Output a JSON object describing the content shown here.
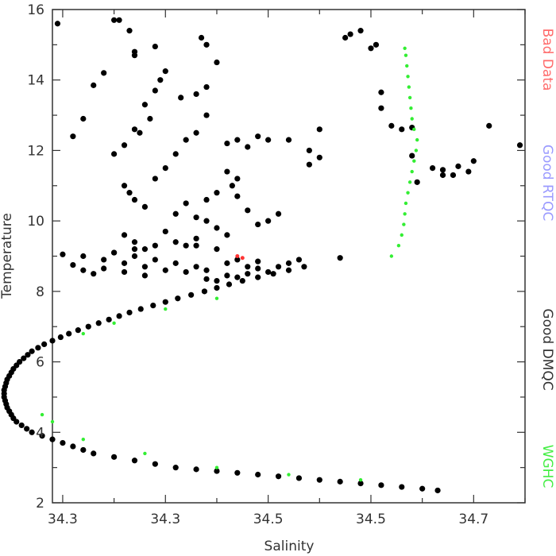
{
  "chart_data": {
    "type": "scatter",
    "xlabel": "Salinity",
    "ylabel": "Temperature",
    "xlim": [
      34.27,
      34.73
    ],
    "ylim": [
      2,
      16
    ],
    "x_tick_labels": [
      {
        "value": 34.28,
        "label": "34.3"
      },
      {
        "value": 34.38,
        "label": "34.3"
      },
      {
        "value": 34.48,
        "label": "34.5"
      },
      {
        "value": 34.58,
        "label": "34.5"
      },
      {
        "value": 34.68,
        "label": "34.7"
      }
    ],
    "y_ticks": [
      2,
      4,
      6,
      8,
      10,
      12,
      14,
      16
    ],
    "legend": [
      {
        "label": "Bad Data",
        "color": "#ff6b6b"
      },
      {
        "label": "Good RTQC",
        "color": "#9a9aff"
      },
      {
        "label": "Good DMQC",
        "color": "#333333"
      },
      {
        "label": "WGHC",
        "color": "#44ee44"
      }
    ],
    "series": [
      {
        "name": "Good DMQC",
        "color": "#000000",
        "points": [
          [
            34.645,
            2.35
          ],
          [
            34.63,
            2.4
          ],
          [
            34.61,
            2.45
          ],
          [
            34.59,
            2.5
          ],
          [
            34.57,
            2.55
          ],
          [
            34.55,
            2.6
          ],
          [
            34.53,
            2.65
          ],
          [
            34.51,
            2.7
          ],
          [
            34.49,
            2.75
          ],
          [
            34.47,
            2.8
          ],
          [
            34.45,
            2.85
          ],
          [
            34.43,
            2.9
          ],
          [
            34.41,
            2.95
          ],
          [
            34.39,
            3.0
          ],
          [
            34.37,
            3.1
          ],
          [
            34.35,
            3.2
          ],
          [
            34.33,
            3.3
          ],
          [
            34.31,
            3.4
          ],
          [
            34.3,
            3.5
          ],
          [
            34.29,
            3.6
          ],
          [
            34.28,
            3.7
          ],
          [
            34.27,
            3.8
          ],
          [
            34.26,
            3.9
          ],
          [
            34.25,
            4.0
          ],
          [
            34.245,
            4.1
          ],
          [
            34.24,
            4.2
          ],
          [
            34.235,
            4.3
          ],
          [
            34.232,
            4.4
          ],
          [
            34.23,
            4.5
          ],
          [
            34.228,
            4.6
          ],
          [
            34.226,
            4.7
          ],
          [
            34.225,
            4.8
          ],
          [
            34.224,
            4.9
          ],
          [
            34.223,
            5.0
          ],
          [
            34.223,
            5.1
          ],
          [
            34.223,
            5.2
          ],
          [
            34.224,
            5.3
          ],
          [
            34.225,
            5.4
          ],
          [
            34.226,
            5.5
          ],
          [
            34.228,
            5.6
          ],
          [
            34.23,
            5.7
          ],
          [
            34.232,
            5.8
          ],
          [
            34.235,
            5.9
          ],
          [
            34.238,
            6.0
          ],
          [
            34.242,
            6.1
          ],
          [
            34.246,
            6.2
          ],
          [
            34.25,
            6.3
          ],
          [
            34.256,
            6.4
          ],
          [
            34.262,
            6.5
          ],
          [
            34.27,
            6.6
          ],
          [
            34.278,
            6.7
          ],
          [
            34.286,
            6.8
          ],
          [
            34.295,
            6.9
          ],
          [
            34.305,
            7.0
          ],
          [
            34.315,
            7.1
          ],
          [
            34.325,
            7.2
          ],
          [
            34.335,
            7.3
          ],
          [
            34.345,
            7.4
          ],
          [
            34.356,
            7.5
          ],
          [
            34.368,
            7.6
          ],
          [
            34.38,
            7.7
          ],
          [
            34.392,
            7.8
          ],
          [
            34.405,
            7.9
          ],
          [
            34.418,
            8.0
          ],
          [
            34.43,
            8.1
          ],
          [
            34.442,
            8.2
          ],
          [
            34.455,
            8.3
          ],
          [
            34.47,
            8.4
          ],
          [
            34.485,
            8.5
          ],
          [
            34.5,
            8.6
          ],
          [
            34.515,
            8.7
          ],
          [
            34.43,
            8.3
          ],
          [
            34.46,
            8.5
          ],
          [
            34.48,
            8.55
          ],
          [
            34.49,
            8.7
          ],
          [
            34.5,
            8.8
          ],
          [
            34.51,
            8.9
          ],
          [
            34.47,
            8.65
          ],
          [
            34.45,
            8.4
          ],
          [
            34.44,
            8.45
          ],
          [
            34.42,
            8.35
          ],
          [
            34.4,
            8.55
          ],
          [
            34.38,
            8.6
          ],
          [
            34.36,
            8.7
          ],
          [
            34.34,
            8.8
          ],
          [
            34.32,
            8.9
          ],
          [
            34.3,
            9.0
          ],
          [
            34.28,
            9.05
          ],
          [
            34.33,
            9.1
          ],
          [
            34.35,
            9.2
          ],
          [
            34.37,
            9.3
          ],
          [
            34.39,
            9.4
          ],
          [
            34.41,
            9.3
          ],
          [
            34.43,
            9.2
          ],
          [
            34.45,
            8.9
          ],
          [
            34.44,
            8.8
          ],
          [
            34.46,
            8.7
          ],
          [
            34.47,
            8.85
          ],
          [
            34.55,
            8.95
          ],
          [
            34.42,
            8.6
          ],
          [
            34.41,
            8.7
          ],
          [
            34.39,
            8.8
          ],
          [
            34.37,
            8.9
          ],
          [
            34.35,
            9.0
          ],
          [
            34.31,
            8.5
          ],
          [
            34.3,
            8.6
          ],
          [
            34.29,
            8.75
          ],
          [
            34.32,
            8.65
          ],
          [
            34.34,
            8.55
          ],
          [
            34.36,
            8.45
          ]
        ]
      },
      {
        "name": "Good DMQC",
        "color": "#000000",
        "points": [
          [
            34.275,
            15.6
          ],
          [
            34.33,
            15.7
          ],
          [
            34.335,
            15.7
          ],
          [
            34.345,
            15.4
          ],
          [
            34.35,
            14.8
          ],
          [
            34.35,
            14.7
          ],
          [
            34.32,
            14.2
          ],
          [
            34.31,
            13.85
          ],
          [
            34.37,
            14.95
          ],
          [
            34.38,
            14.25
          ],
          [
            34.375,
            14.0
          ],
          [
            34.37,
            13.7
          ],
          [
            34.36,
            13.3
          ],
          [
            34.365,
            12.9
          ],
          [
            34.35,
            12.6
          ],
          [
            34.355,
            12.5
          ],
          [
            34.34,
            12.15
          ],
          [
            34.33,
            11.9
          ],
          [
            34.3,
            12.9
          ],
          [
            34.29,
            12.4
          ],
          [
            34.34,
            11.0
          ],
          [
            34.345,
            10.8
          ],
          [
            34.35,
            10.6
          ],
          [
            34.36,
            10.4
          ],
          [
            34.37,
            11.2
          ],
          [
            34.38,
            11.5
          ],
          [
            34.39,
            11.9
          ],
          [
            34.4,
            12.3
          ],
          [
            34.41,
            12.5
          ],
          [
            34.42,
            13.0
          ],
          [
            34.395,
            13.5
          ],
          [
            34.41,
            13.6
          ],
          [
            34.42,
            13.8
          ],
          [
            34.43,
            14.5
          ],
          [
            34.415,
            15.2
          ],
          [
            34.42,
            15.0
          ],
          [
            34.44,
            12.2
          ],
          [
            34.45,
            12.3
          ],
          [
            34.46,
            12.1
          ],
          [
            34.47,
            12.4
          ],
          [
            34.48,
            12.3
          ],
          [
            34.445,
            11.0
          ],
          [
            34.45,
            10.7
          ],
          [
            34.46,
            10.3
          ],
          [
            34.47,
            9.9
          ],
          [
            34.42,
            10.0
          ],
          [
            34.43,
            9.8
          ],
          [
            34.44,
            9.6
          ],
          [
            34.41,
            9.5
          ],
          [
            34.4,
            9.3
          ],
          [
            34.38,
            9.7
          ],
          [
            34.36,
            9.2
          ],
          [
            34.35,
            9.4
          ],
          [
            34.34,
            9.6
          ],
          [
            34.33,
            9.1
          ],
          [
            34.39,
            10.2
          ],
          [
            34.4,
            10.5
          ],
          [
            34.41,
            10.1
          ],
          [
            34.42,
            10.6
          ],
          [
            34.43,
            10.8
          ],
          [
            34.44,
            11.4
          ],
          [
            34.45,
            11.2
          ],
          [
            34.48,
            10.0
          ],
          [
            34.49,
            10.2
          ],
          [
            34.5,
            12.3
          ],
          [
            34.52,
            12.0
          ],
          [
            34.53,
            11.8
          ],
          [
            34.52,
            11.6
          ],
          [
            34.53,
            12.6
          ],
          [
            34.56,
            15.3
          ],
          [
            34.555,
            15.2
          ],
          [
            34.57,
            15.4
          ],
          [
            34.585,
            15.0
          ],
          [
            34.59,
            13.65
          ],
          [
            34.59,
            13.2
          ],
          [
            34.6,
            12.7
          ],
          [
            34.61,
            12.6
          ],
          [
            34.62,
            12.65
          ],
          [
            34.58,
            14.9
          ],
          [
            34.62,
            11.85
          ],
          [
            34.625,
            11.1
          ],
          [
            34.64,
            11.5
          ],
          [
            34.65,
            11.45
          ],
          [
            34.66,
            11.3
          ],
          [
            34.675,
            11.4
          ],
          [
            34.68,
            11.7
          ],
          [
            34.695,
            12.7
          ],
          [
            34.725,
            12.15
          ],
          [
            34.65,
            11.3
          ],
          [
            34.665,
            11.55
          ]
        ]
      },
      {
        "name": "WGHC",
        "color": "#33ee33",
        "points": [
          [
            34.613,
            14.9
          ],
          [
            34.614,
            14.7
          ],
          [
            34.615,
            14.4
          ],
          [
            34.616,
            14.1
          ],
          [
            34.617,
            13.8
          ],
          [
            34.618,
            13.5
          ],
          [
            34.619,
            13.2
          ],
          [
            34.62,
            12.9
          ],
          [
            34.622,
            12.6
          ],
          [
            34.625,
            12.3
          ],
          [
            34.624,
            12.0
          ],
          [
            34.622,
            11.7
          ],
          [
            34.62,
            11.4
          ],
          [
            34.618,
            11.1
          ],
          [
            34.616,
            10.8
          ],
          [
            34.614,
            10.5
          ],
          [
            34.613,
            10.2
          ],
          [
            34.612,
            9.9
          ],
          [
            34.61,
            9.6
          ],
          [
            34.607,
            9.3
          ],
          [
            34.6,
            9.0
          ],
          [
            34.43,
            7.8
          ],
          [
            34.38,
            7.5
          ],
          [
            34.33,
            7.1
          ],
          [
            34.3,
            6.8
          ],
          [
            34.26,
            4.5
          ],
          [
            34.27,
            4.3
          ],
          [
            34.3,
            3.8
          ],
          [
            34.36,
            3.4
          ],
          [
            34.43,
            3.0
          ],
          [
            34.5,
            2.8
          ],
          [
            34.57,
            2.65
          ]
        ]
      },
      {
        "name": "Bad Data",
        "color": "#ff3333",
        "points": [
          [
            34.45,
            9.0
          ],
          [
            34.455,
            8.95
          ]
        ]
      }
    ]
  }
}
